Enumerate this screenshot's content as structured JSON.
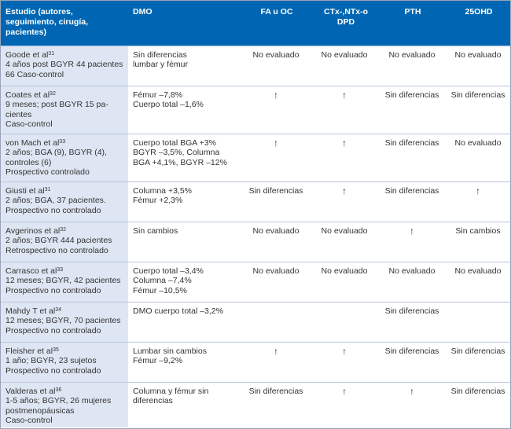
{
  "header": {
    "col_study": "Estudio (autores, seguimiento, cirugía, pacientes)",
    "col_dmo": "DMO",
    "col_fa": "FA u OC",
    "col_ctx": "CTx-,NTx-o DPD",
    "col_pth": "PTH",
    "col_25ohd": "25OHD"
  },
  "rows": [
    {
      "author": "Goode et al",
      "ref": "31",
      "details": [
        "4 años post BGYR 44 pacientes",
        "66 Caso-control"
      ],
      "dmo": [
        "Sin diferencias",
        "lumbar y fémur"
      ],
      "fa": "No  evaluado",
      "ctx": "No evaluado",
      "pth": "No evaluado",
      "ohd": "No evaluado"
    },
    {
      "author": "Coates et al",
      "ref": "32",
      "details": [
        "9 meses; post BGYR 15 pa-",
        "cientes",
        "Caso-control"
      ],
      "dmo": [
        "Fémur –7,8%",
        "Cuerpo total –1,6%"
      ],
      "fa": "↑",
      "ctx": "↑",
      "pth": "Sin diferencias",
      "ohd": "Sin diferencias"
    },
    {
      "author": "von Mach et al",
      "ref": "33",
      "details": [
        "2 años; BGA (9), BGYR (4),",
        "controles (6)",
        "Prospectivo controlado"
      ],
      "dmo": [
        "Cuerpo total BGA +3%",
        "BGYR –3,5%, Columna",
        "BGA +4,1%, BGYR –12%"
      ],
      "fa": "↑",
      "ctx": "↑",
      "pth": "Sin diferencias",
      "ohd": "No evaluado"
    },
    {
      "author": "Giusti et al",
      "ref": "31",
      "details": [
        "2 años; BGA, 37 pacientes.",
        "Prospectivo no controlado"
      ],
      "dmo": [
        "Columna +3,5%",
        "Fémur +2,3%"
      ],
      "fa": "Sin diferencias",
      "ctx": "↑",
      "pth": "Sin diferencias",
      "ohd": "↑"
    },
    {
      "author": "Avgerinos et al",
      "ref": "32",
      "details": [
        "2 años; BGYR 444 pacientes",
        "Retrospectivo no controlado"
      ],
      "dmo": [
        "Sin cambios"
      ],
      "fa": "No   evaluado",
      "ctx": "No evaluado",
      "pth": "↑",
      "ohd": "Sin cambios"
    },
    {
      "author": "Carrasco et al",
      "ref": "33",
      "details": [
        "12 meses; BGYR, 42 pacientes",
        "Prospectivo no controlado"
      ],
      "dmo": [
        "Cuerpo total –3,4%",
        "Columna –7,4%",
        "Fémur –10,5%"
      ],
      "fa": "No  evaluado",
      "ctx": "No evaluado",
      "pth": "No evaluado",
      "ohd": "No evaluado"
    },
    {
      "author": "Mahdy T et al",
      "ref": "34",
      "details": [
        "12 meses; BGYR, 70 pacientes",
        "Prospectivo no controlado"
      ],
      "dmo": [
        "DMO cuerpo total –3,2%"
      ],
      "fa": "",
      "ctx": "",
      "pth": "Sin diferencias",
      "ohd": ""
    },
    {
      "author": "Fleisher et al",
      "ref": "35",
      "details": [
        "1 año; BGYR, 23 sujetos",
        "Prospectivo no controlado"
      ],
      "dmo": [
        "Lumbar sin cambios",
        "Fémur –9,2%"
      ],
      "fa": "↑",
      "ctx": "↑",
      "pth": "Sin diferencias",
      "ohd": "Sin diferencias"
    },
    {
      "author": "Valderas et al",
      "ref": "36",
      "details": [
        "1-5 años; BGYR, 26 mujeres",
        "postmenopáusicas",
        "Caso-control"
      ],
      "dmo": [
        "Columna y fémur sin",
        "diferencias"
      ],
      "fa": "Sin diferencias",
      "ctx": "↑",
      "pth": "↑",
      "ohd": "Sin diferencias"
    }
  ]
}
